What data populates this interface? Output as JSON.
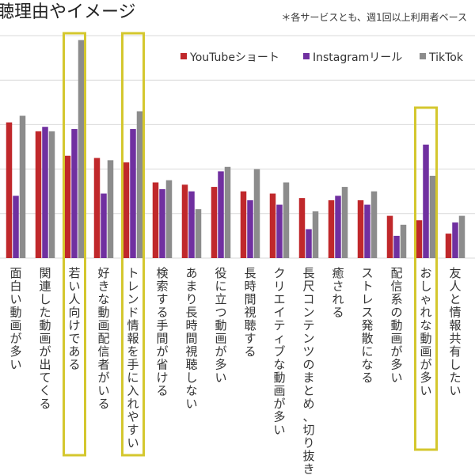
{
  "title": "聴理由やイメージ",
  "note": "＊各サービスとも、週1回以上利用者ベース",
  "colors": {
    "youtube": "#C0282B",
    "instagram": "#7030A0",
    "tiktok": "#8C8C8C",
    "highlight": "#D4C72E",
    "grid": "#D9D9D9"
  },
  "chart_data": {
    "type": "bar",
    "title": "聴理由やイメージ",
    "note": "＊各サービスとも、週1回以上利用者ベース",
    "legend_position": "top-right",
    "grid": true,
    "ylim": [
      0,
      100
    ],
    "categories": [
      "面白い動画が多い",
      "関連した動画が出てくる",
      "若い人向けである",
      "好きな動画配信者がいる",
      "トレンド情報を手に入れやすい",
      "検索する手間が省ける",
      "あまり長時間視聴しない",
      "役に立つ動画が多い",
      "長時間視聴する",
      "クリエイティブな動画が多い",
      "長尺コンテンツのまとめ、切り抜き…",
      "癒される",
      "ストレス発散になる",
      "配信系の動画が多い",
      "おしゃれな動画が多い",
      "友人と情報共有したい"
    ],
    "series": [
      {
        "name": "YouTubeショート",
        "values": [
          61,
          57,
          46,
          45,
          43,
          34,
          33,
          32,
          30,
          29,
          27,
          26,
          26,
          19,
          17,
          11
        ]
      },
      {
        "name": "Instagramリール",
        "values": [
          28,
          59,
          58,
          29,
          58,
          31,
          30,
          39,
          26,
          24,
          13,
          28,
          24,
          10,
          51,
          16
        ]
      },
      {
        "name": "TikTok",
        "values": [
          64,
          57,
          98,
          44,
          66,
          35,
          22,
          41,
          40,
          34,
          21,
          32,
          30,
          15,
          37,
          19
        ]
      }
    ],
    "highlighted_categories": [
      2,
      4,
      14
    ]
  }
}
